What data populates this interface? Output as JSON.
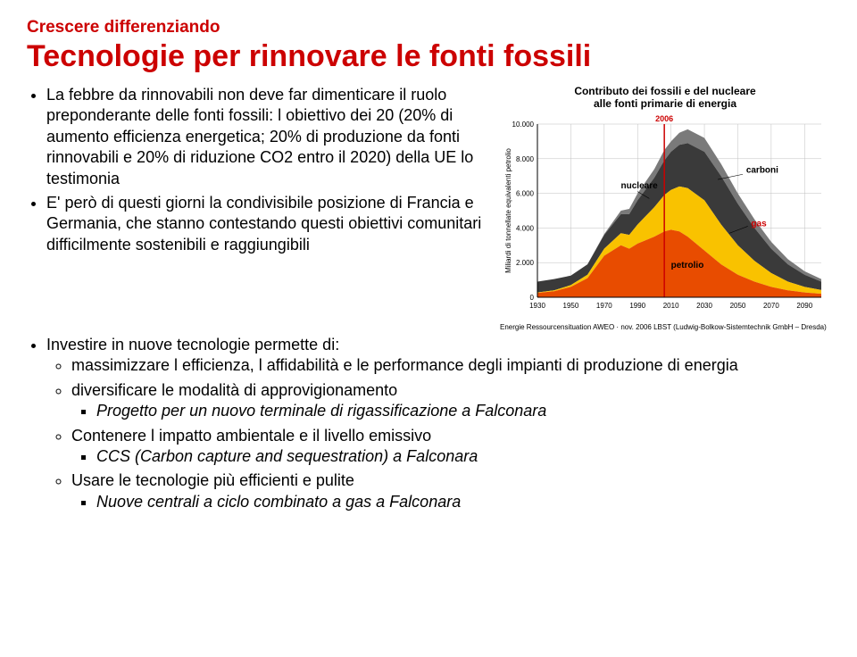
{
  "header": {
    "small": "Crescere differenziando",
    "main": "Tecnologie per rinnovare le fonti fossili"
  },
  "bullets_top": {
    "b1": "La febbre da rinnovabili non deve far dimenticare il ruolo preponderante delle fonti fossili: l obiettivo dei 20 (20% di aumento efficienza energetica; 20% di produzione da fonti rinnovabili e 20% di riduzione CO2 entro il 2020) della UE lo testimonia",
    "b2": "E' però di questi giorni la condivisibile posizione di Francia e Germania, che stanno contestando questi obiettivi comunitari difficilmente sostenibili e raggiungibili",
    "b3": "Investire in nuove tecnologie permette di:",
    "b3_1": "massimizzare l efficienza, l affidabilità e le performance degli impianti di produzione di energia",
    "b3_2": "diversificare le modalità di approvigionamento",
    "b3_2_1": "Progetto per un nuovo terminale di rigassificazione a Falconara",
    "b3_3": "Contenere l impatto ambientale e il livello emissivo",
    "b3_3_1": "CCS (Carbon capture and sequestration) a Falconara",
    "b3_4": "Usare le tecnologie più efficienti e pulite",
    "b3_4_1": "Nuove centrali a ciclo combinato a gas a Falconara"
  },
  "chart": {
    "title_line1": "Contributo dei fossili e del nucleare",
    "title_line2": "alle fonti primarie di energia",
    "year_marker": "2006",
    "yaxis_label": "Miliardi di tonnellate equivalenti petrolio",
    "yticks": [
      "0",
      "2.000",
      "4.000",
      "6.000",
      "8.000",
      "10.000"
    ],
    "xticks": [
      "1930",
      "1950",
      "1970",
      "1990",
      "2010",
      "2030",
      "2050",
      "2070",
      "2090"
    ],
    "labels": {
      "nucleare": "nucleare",
      "carboni": "carboni",
      "gas": "gas",
      "petrolio": "petrolio"
    },
    "colors": {
      "nucleare": "#7a7a7a",
      "carboni": "#3a3a3a",
      "gas": "#f9c200",
      "petrolio": "#e84c00",
      "grid": "#bfbfbf",
      "background": "#ffffff",
      "marker_line": "#cc0000"
    },
    "source": "Energie Ressourcensituation AWEO · nov. 2006\nLBST (Ludwig-Bolkow-Sistemtechnik GmbH – Dresda)",
    "xrange": [
      1930,
      2100
    ],
    "yrange": [
      0,
      10000
    ],
    "series": {
      "petrolio": [
        [
          1930,
          250
        ],
        [
          1940,
          350
        ],
        [
          1950,
          600
        ],
        [
          1960,
          1100
        ],
        [
          1970,
          2400
        ],
        [
          1980,
          3000
        ],
        [
          1985,
          2800
        ],
        [
          1990,
          3100
        ],
        [
          2000,
          3500
        ],
        [
          2006,
          3800
        ],
        [
          2010,
          3900
        ],
        [
          2015,
          3800
        ],
        [
          2020,
          3500
        ],
        [
          2030,
          2700
        ],
        [
          2040,
          1900
        ],
        [
          2050,
          1300
        ],
        [
          2060,
          900
        ],
        [
          2070,
          600
        ],
        [
          2080,
          400
        ],
        [
          2090,
          280
        ],
        [
          2100,
          200
        ]
      ],
      "gas": [
        [
          1930,
          280
        ],
        [
          1940,
          400
        ],
        [
          1950,
          700
        ],
        [
          1960,
          1300
        ],
        [
          1970,
          2800
        ],
        [
          1980,
          3700
        ],
        [
          1985,
          3600
        ],
        [
          1990,
          4200
        ],
        [
          2000,
          5200
        ],
        [
          2006,
          5900
        ],
        [
          2010,
          6200
        ],
        [
          2015,
          6400
        ],
        [
          2020,
          6300
        ],
        [
          2030,
          5600
        ],
        [
          2040,
          4200
        ],
        [
          2050,
          3000
        ],
        [
          2060,
          2100
        ],
        [
          2070,
          1400
        ],
        [
          2080,
          900
        ],
        [
          2090,
          600
        ],
        [
          2100,
          420
        ]
      ],
      "carboni": [
        [
          1930,
          900
        ],
        [
          1940,
          1050
        ],
        [
          1950,
          1250
        ],
        [
          1960,
          1900
        ],
        [
          1970,
          3600
        ],
        [
          1980,
          4800
        ],
        [
          1985,
          4800
        ],
        [
          1990,
          5600
        ],
        [
          2000,
          6900
        ],
        [
          2006,
          7900
        ],
        [
          2010,
          8400
        ],
        [
          2015,
          8800
        ],
        [
          2020,
          8900
        ],
        [
          2030,
          8400
        ],
        [
          2040,
          7000
        ],
        [
          2050,
          5400
        ],
        [
          2060,
          4000
        ],
        [
          2070,
          2800
        ],
        [
          2080,
          1900
        ],
        [
          2090,
          1300
        ],
        [
          2100,
          900
        ]
      ],
      "nucleare": [
        [
          1930,
          900
        ],
        [
          1940,
          1050
        ],
        [
          1950,
          1250
        ],
        [
          1960,
          1900
        ],
        [
          1970,
          3650
        ],
        [
          1980,
          5000
        ],
        [
          1985,
          5100
        ],
        [
          1990,
          6000
        ],
        [
          2000,
          7400
        ],
        [
          2006,
          8500
        ],
        [
          2010,
          9000
        ],
        [
          2015,
          9500
        ],
        [
          2020,
          9700
        ],
        [
          2030,
          9200
        ],
        [
          2040,
          7700
        ],
        [
          2050,
          6000
        ],
        [
          2060,
          4500
        ],
        [
          2070,
          3200
        ],
        [
          2080,
          2200
        ],
        [
          2090,
          1500
        ],
        [
          2100,
          1050
        ]
      ]
    }
  }
}
